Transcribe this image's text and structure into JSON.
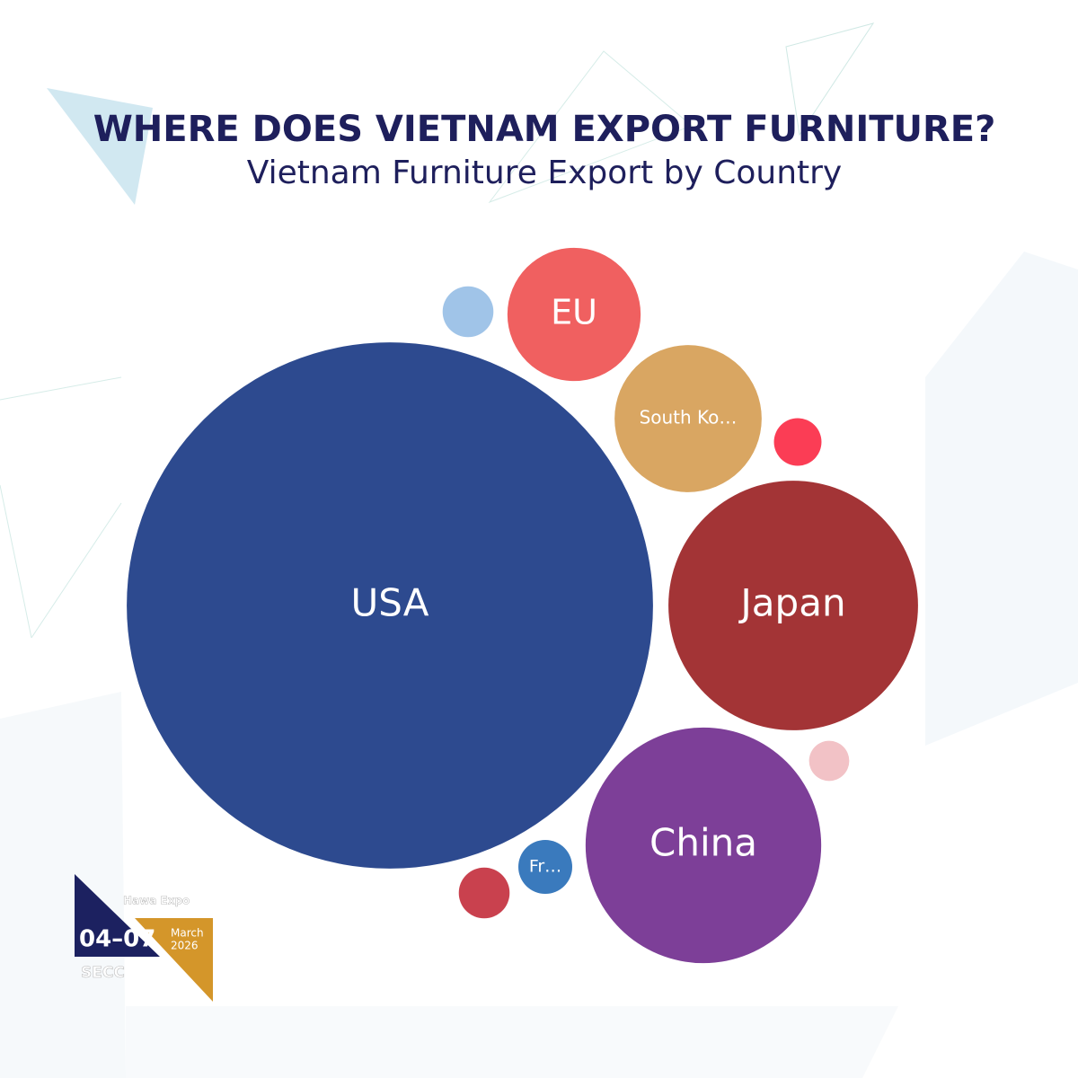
{
  "chart_data": {
    "type": "bubble",
    "title": "WHERE DOES VIETNAM EXPORT FURNITURE?",
    "subtitle": "Vietnam Furniture Export by Country",
    "categories": [
      "USA",
      "Japan",
      "China",
      "South Ko…",
      "EU",
      "Fr…",
      null,
      null,
      null,
      null
    ],
    "values": [
      85.8,
      19.3,
      17.2,
      6.7,
      5.5,
      0.9,
      0.8,
      0.7,
      0.5,
      0.8
    ],
    "colors": [
      "#2d4a8f",
      "#a33436",
      "#7d3f98",
      "#d9a662",
      "#f06060",
      "#3a7abd",
      "#a0c4e8",
      "#fb3d55",
      "#f2c2c6",
      "#c9414e"
    ]
  },
  "logo": {
    "name": "Hawa Expo",
    "dates": "04–07",
    "month": "March",
    "year": "2026",
    "venue": "SECC"
  }
}
